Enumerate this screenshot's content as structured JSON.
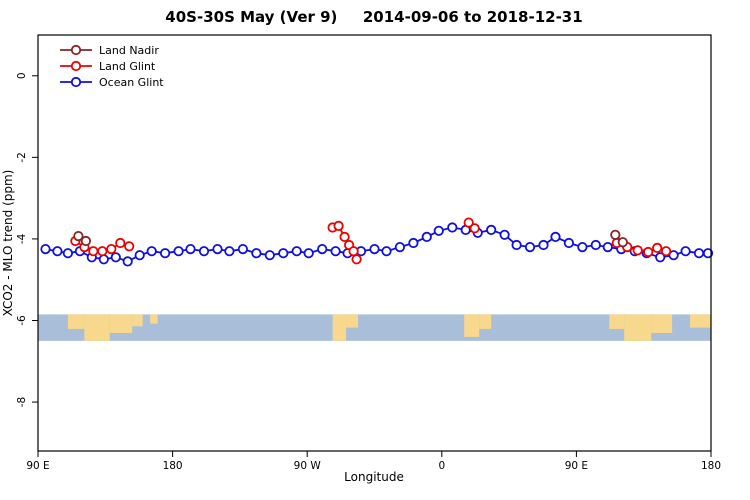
{
  "title": "40S-30S May (Ver 9)   2014-09-06 to 2018-12-31",
  "xlabel": "Longitude",
  "ylabel": "XCO2 - MLO trend (ppm)",
  "chart_data": {
    "type": "line",
    "xlim": [
      0,
      450
    ],
    "ylim": [
      -9.2,
      1.0
    ],
    "grid": false,
    "legend_position": "top-left",
    "xticks": [
      {
        "pos": 0,
        "label": "90 E"
      },
      {
        "pos": 90,
        "label": "180"
      },
      {
        "pos": 180,
        "label": "90 W"
      },
      {
        "pos": 270,
        "label": "0"
      },
      {
        "pos": 360,
        "label": "90 E"
      },
      {
        "pos": 450,
        "label": "180"
      }
    ],
    "yticks": [
      {
        "pos": 0,
        "label": "0"
      },
      {
        "pos": -2,
        "label": "-2"
      },
      {
        "pos": -4,
        "label": "-4"
      },
      {
        "pos": -6,
        "label": "-6"
      },
      {
        "pos": -8,
        "label": "-8"
      }
    ],
    "x_axis_note": "x values are degrees east of 90E along a wrapped longitude axis (0=90E, 90=180, 180=90W, 270=0, 360=90E, 450=180)",
    "series": [
      {
        "name": "Land Nadir",
        "color": "#8b2323",
        "segments": [
          [
            [
              27,
              -3.93
            ],
            [
              32,
              -4.05
            ]
          ],
          [
            [
              386,
              -3.9
            ],
            [
              391,
              -4.08
            ]
          ]
        ]
      },
      {
        "name": "Land Glint",
        "color": "#ee0000",
        "segments": [
          [
            [
              25,
              -4.05
            ],
            [
              31,
              -4.2
            ],
            [
              37,
              -4.3
            ],
            [
              43,
              -4.3
            ],
            [
              49,
              -4.25
            ],
            [
              55,
              -4.1
            ],
            [
              61,
              -4.18
            ]
          ],
          [
            [
              197,
              -3.72
            ],
            [
              201,
              -3.68
            ],
            [
              205,
              -3.95
            ],
            [
              208,
              -4.15
            ],
            [
              211,
              -4.3
            ],
            [
              213,
              -4.5
            ]
          ],
          [
            [
              288,
              -3.6
            ],
            [
              292,
              -3.74
            ]
          ],
          [
            [
              387,
              -4.1
            ],
            [
              394,
              -4.2
            ],
            [
              401,
              -4.28
            ],
            [
              408,
              -4.32
            ],
            [
              414,
              -4.22
            ],
            [
              420,
              -4.3
            ]
          ]
        ]
      },
      {
        "name": "Ocean Glint",
        "color": "#0f0fe0",
        "segments": [
          [
            [
              5,
              -4.25
            ],
            [
              13,
              -4.3
            ],
            [
              20,
              -4.35
            ],
            [
              28,
              -4.3
            ],
            [
              36,
              -4.45
            ],
            [
              44,
              -4.5
            ],
            [
              52,
              -4.45
            ],
            [
              60,
              -4.55
            ],
            [
              68,
              -4.4
            ],
            [
              76,
              -4.3
            ],
            [
              85,
              -4.35
            ],
            [
              94,
              -4.3
            ],
            [
              102,
              -4.25
            ],
            [
              111,
              -4.3
            ],
            [
              120,
              -4.25
            ],
            [
              128,
              -4.3
            ],
            [
              137,
              -4.25
            ],
            [
              146,
              -4.35
            ],
            [
              155,
              -4.4
            ],
            [
              164,
              -4.35
            ],
            [
              173,
              -4.3
            ],
            [
              181,
              -4.35
            ],
            [
              190,
              -4.25
            ],
            [
              199,
              -4.3
            ],
            [
              207,
              -4.35
            ],
            [
              216,
              -4.3
            ],
            [
              225,
              -4.25
            ],
            [
              233,
              -4.3
            ],
            [
              242,
              -4.2
            ],
            [
              251,
              -4.1
            ],
            [
              260,
              -3.95
            ],
            [
              268,
              -3.8
            ],
            [
              277,
              -3.72
            ],
            [
              286,
              -3.78
            ],
            [
              294,
              -3.85
            ],
            [
              303,
              -3.78
            ],
            [
              312,
              -3.9
            ],
            [
              320,
              -4.15
            ],
            [
              329,
              -4.2
            ],
            [
              338,
              -4.15
            ],
            [
              346,
              -3.95
            ],
            [
              355,
              -4.1
            ],
            [
              364,
              -4.2
            ],
            [
              373,
              -4.15
            ],
            [
              381,
              -4.2
            ],
            [
              390,
              -4.25
            ],
            [
              399,
              -4.3
            ],
            [
              407,
              -4.35
            ],
            [
              416,
              -4.45
            ],
            [
              425,
              -4.4
            ],
            [
              433,
              -4.3
            ],
            [
              442,
              -4.35
            ],
            [
              448,
              -4.35
            ]
          ]
        ]
      }
    ],
    "map_band": {
      "y_top": -5.85,
      "y_bottom": -6.5,
      "ocean_color": "#a9bfd9",
      "land_color": "#f8d88c",
      "land_patches": [
        [
          20,
          31,
          0.55
        ],
        [
          31,
          48,
          1.0
        ],
        [
          48,
          63,
          0.7
        ],
        [
          63,
          70,
          0.45
        ],
        [
          75,
          80,
          0.35
        ],
        [
          197,
          206,
          1.0
        ],
        [
          206,
          214,
          0.5
        ],
        [
          285,
          295,
          0.85
        ],
        [
          295,
          303,
          0.55
        ],
        [
          382,
          392,
          0.55
        ],
        [
          392,
          410,
          1.0
        ],
        [
          410,
          424,
          0.7
        ],
        [
          436,
          450,
          0.5
        ]
      ]
    }
  }
}
